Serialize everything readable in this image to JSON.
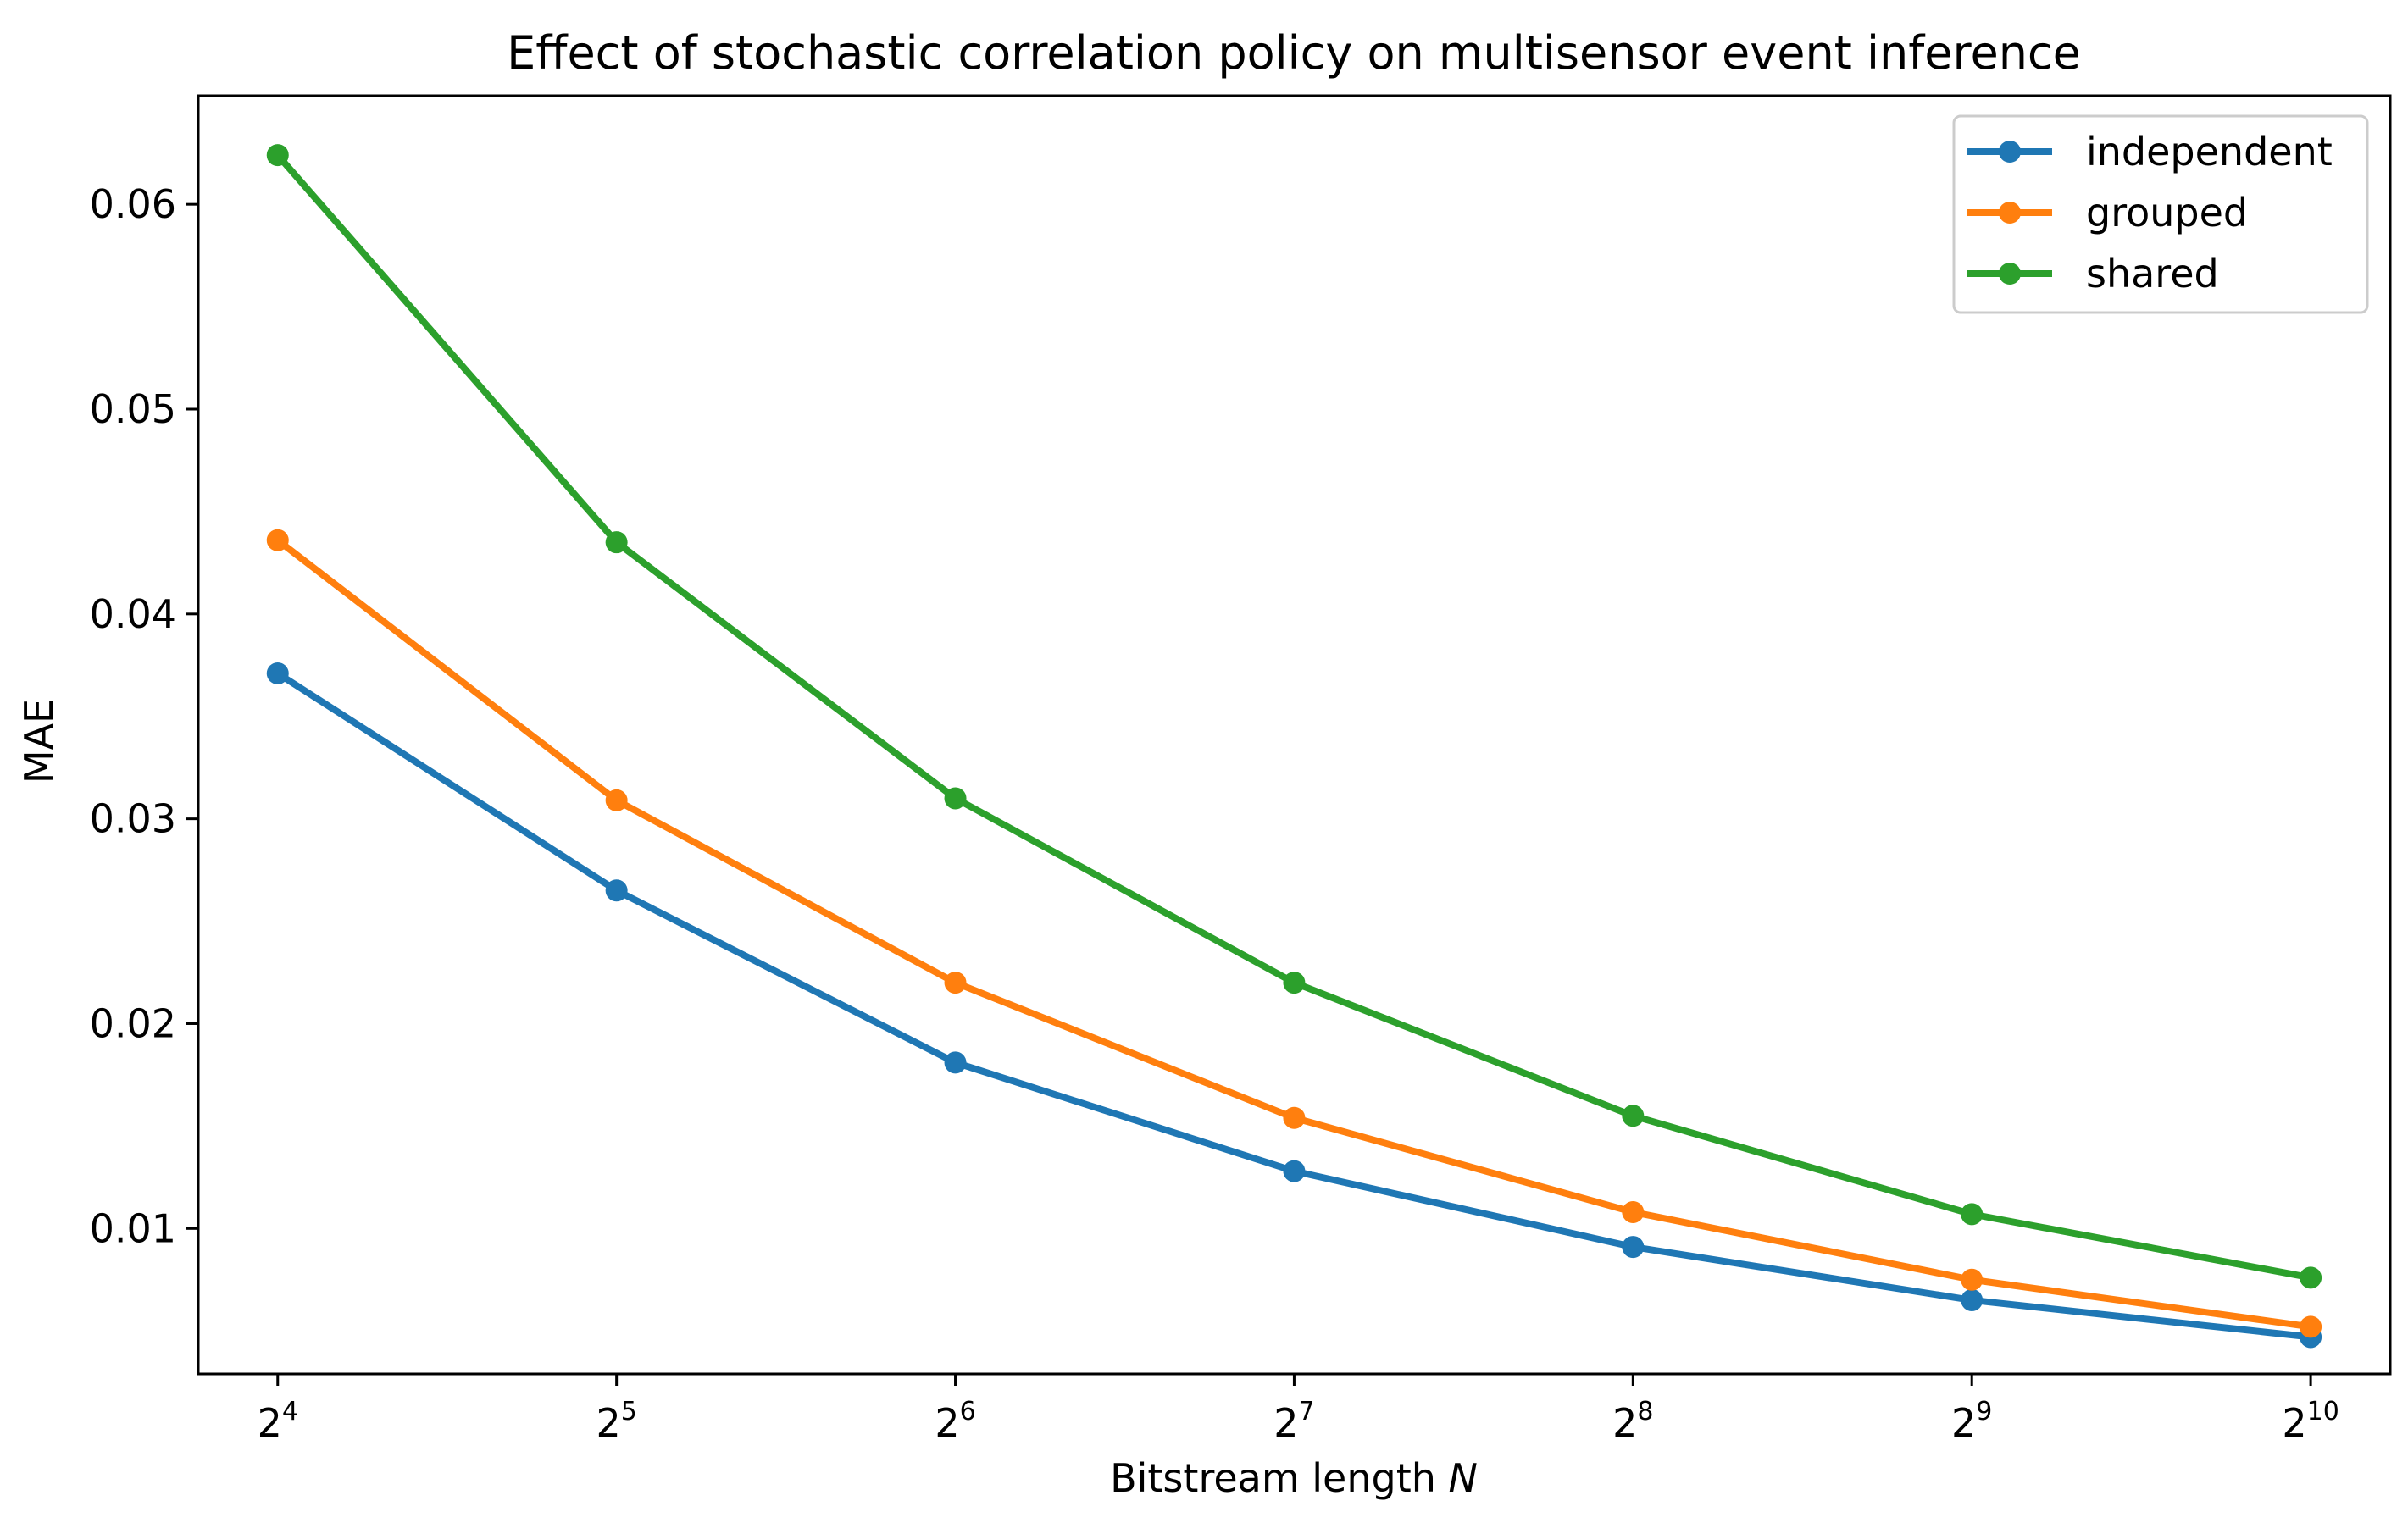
{
  "chart_data": {
    "type": "line",
    "title": "Effect of stochastic correlation policy on multisensor event inference",
    "xlabel": "Bitstream length",
    "xlabel_var": "N",
    "ylabel": "MAE",
    "x_scale": "log2",
    "x": [
      16,
      32,
      64,
      128,
      256,
      512,
      1024
    ],
    "x_tick_base": "2",
    "x_tick_exponents": [
      "4",
      "5",
      "6",
      "7",
      "8",
      "9",
      "10"
    ],
    "y_ticks": [
      "0.01",
      "0.02",
      "0.03",
      "0.04",
      "0.05",
      "0.06"
    ],
    "xlim": [
      13.6,
      1205
    ],
    "ylim": [
      0.0029,
      0.0653
    ],
    "grid": false,
    "legend_position": "top-right",
    "series": [
      {
        "name": "independent",
        "color": "#1f77b4",
        "values": [
          0.0371,
          0.0265,
          0.0181,
          0.0128,
          0.0091,
          0.0065,
          0.0047
        ]
      },
      {
        "name": "grouped",
        "color": "#ff7f0e",
        "values": [
          0.0436,
          0.0309,
          0.022,
          0.0154,
          0.0108,
          0.0075,
          0.0052
        ]
      },
      {
        "name": "shared",
        "color": "#2ca02c",
        "values": [
          0.0624,
          0.0435,
          0.031,
          0.022,
          0.0155,
          0.0107,
          0.0076
        ]
      }
    ]
  }
}
